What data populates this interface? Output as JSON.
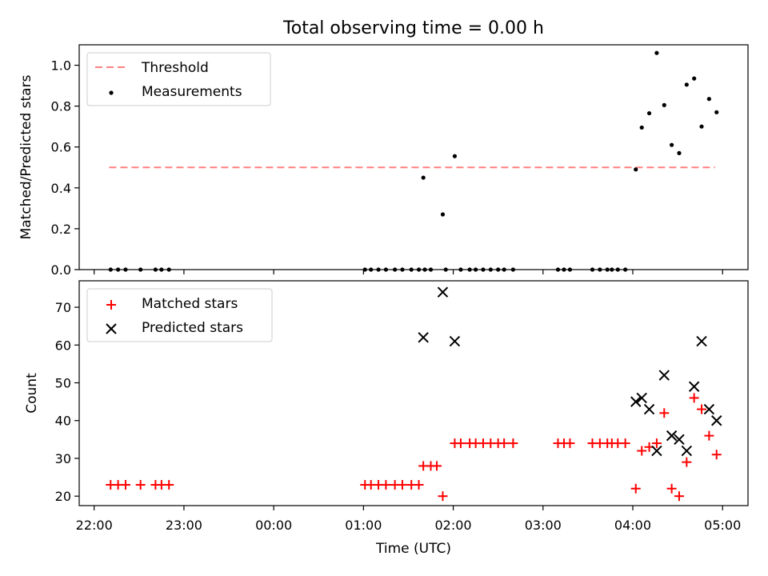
{
  "chart_data": [
    {
      "type": "scatter",
      "title": "Total observing time = 0.00 h",
      "ylabel": "Matched/Predicted stars",
      "xlabel": "",
      "xlim": [
        "21:50",
        "05:17"
      ],
      "ylim": [
        0,
        1.1
      ],
      "yticks": [
        "0.0",
        "0.2",
        "0.4",
        "0.6",
        "0.8",
        "1.0"
      ],
      "legend": {
        "position": "top-left"
      },
      "threshold": {
        "name": "Threshold",
        "value": 0.5,
        "x_range": [
          "22:10",
          "04:55"
        ],
        "color": "#ff8080"
      },
      "series": [
        {
          "name": "Measurements",
          "color": "#000000",
          "points": [
            [
              "22:11",
              0.0
            ],
            [
              "22:16",
              0.0
            ],
            [
              "22:21",
              0.0
            ],
            [
              "22:31",
              0.0
            ],
            [
              "22:41",
              0.0
            ],
            [
              "22:45",
              0.0
            ],
            [
              "22:50",
              0.0
            ],
            [
              "01:01",
              0.0
            ],
            [
              "01:05",
              0.0
            ],
            [
              "01:10",
              0.0
            ],
            [
              "01:15",
              0.0
            ],
            [
              "01:21",
              0.0
            ],
            [
              "01:26",
              0.0
            ],
            [
              "01:32",
              0.0
            ],
            [
              "01:37",
              0.0
            ],
            [
              "01:41",
              0.0
            ],
            [
              "01:45",
              0.0
            ],
            [
              "01:55",
              0.0
            ],
            [
              "02:05",
              0.0
            ],
            [
              "02:11",
              0.0
            ],
            [
              "02:15",
              0.0
            ],
            [
              "02:20",
              0.0
            ],
            [
              "02:25",
              0.0
            ],
            [
              "02:30",
              0.0
            ],
            [
              "02:34",
              0.0
            ],
            [
              "02:40",
              0.0
            ],
            [
              "03:10",
              0.0
            ],
            [
              "03:14",
              0.0
            ],
            [
              "03:18",
              0.0
            ],
            [
              "03:33",
              0.0
            ],
            [
              "03:38",
              0.0
            ],
            [
              "03:43",
              0.0
            ],
            [
              "03:46",
              0.0
            ],
            [
              "03:50",
              0.0
            ],
            [
              "03:55",
              0.0
            ],
            [
              "01:40",
              0.45
            ],
            [
              "01:53",
              0.27
            ],
            [
              "02:01",
              0.555
            ],
            [
              "04:02",
              0.49
            ],
            [
              "04:06",
              0.695
            ],
            [
              "04:11",
              0.765
            ],
            [
              "04:16",
              1.06
            ],
            [
              "04:21",
              0.805
            ],
            [
              "04:26",
              0.61
            ],
            [
              "04:31",
              0.57
            ],
            [
              "04:36",
              0.905
            ],
            [
              "04:41",
              0.935
            ],
            [
              "04:46",
              0.7
            ],
            [
              "04:51",
              0.835
            ],
            [
              "04:56",
              0.77
            ]
          ]
        }
      ]
    },
    {
      "type": "scatter",
      "title": "",
      "ylabel": "Count",
      "xlabel": "Time (UTC)",
      "xlim": [
        "21:50",
        "05:17"
      ],
      "ylim": [
        17.5,
        77
      ],
      "yticks": [
        "20",
        "30",
        "40",
        "50",
        "60",
        "70"
      ],
      "xticks": [
        "22:00",
        "23:00",
        "00:00",
        "01:00",
        "02:00",
        "03:00",
        "04:00",
        "05:00"
      ],
      "legend": {
        "position": "top-left"
      },
      "series": [
        {
          "name": "Matched stars",
          "marker": "+",
          "color": "#ff0000",
          "points": [
            [
              "22:11",
              23
            ],
            [
              "22:16",
              23
            ],
            [
              "22:21",
              23
            ],
            [
              "22:31",
              23
            ],
            [
              "22:41",
              23
            ],
            [
              "22:45",
              23
            ],
            [
              "22:50",
              23
            ],
            [
              "01:01",
              23
            ],
            [
              "01:05",
              23
            ],
            [
              "01:10",
              23
            ],
            [
              "01:15",
              23
            ],
            [
              "01:21",
              23
            ],
            [
              "01:26",
              23
            ],
            [
              "01:32",
              23
            ],
            [
              "01:37",
              23
            ],
            [
              "01:40",
              28
            ],
            [
              "01:45",
              28
            ],
            [
              "01:49",
              28
            ],
            [
              "01:53",
              20
            ],
            [
              "02:01",
              34
            ],
            [
              "02:05",
              34
            ],
            [
              "02:11",
              34
            ],
            [
              "02:15",
              34
            ],
            [
              "02:20",
              34
            ],
            [
              "02:25",
              34
            ],
            [
              "02:30",
              34
            ],
            [
              "02:34",
              34
            ],
            [
              "02:40",
              34
            ],
            [
              "03:10",
              34
            ],
            [
              "03:14",
              34
            ],
            [
              "03:18",
              34
            ],
            [
              "03:33",
              34
            ],
            [
              "03:38",
              34
            ],
            [
              "03:43",
              34
            ],
            [
              "03:46",
              34
            ],
            [
              "03:50",
              34
            ],
            [
              "03:55",
              34
            ],
            [
              "04:02",
              22
            ],
            [
              "04:06",
              32
            ],
            [
              "04:11",
              33
            ],
            [
              "04:16",
              34
            ],
            [
              "04:21",
              42
            ],
            [
              "04:26",
              22
            ],
            [
              "04:31",
              20
            ],
            [
              "04:36",
              29
            ],
            [
              "04:41",
              46
            ],
            [
              "04:46",
              43
            ],
            [
              "04:51",
              36
            ],
            [
              "04:56",
              31
            ]
          ]
        },
        {
          "name": "Predicted stars",
          "marker": "x",
          "color": "#000000",
          "points": [
            [
              "01:40",
              62
            ],
            [
              "01:53",
              74
            ],
            [
              "02:01",
              61
            ],
            [
              "04:02",
              45
            ],
            [
              "04:06",
              46
            ],
            [
              "04:11",
              43
            ],
            [
              "04:16",
              32
            ],
            [
              "04:21",
              52
            ],
            [
              "04:26",
              36
            ],
            [
              "04:31",
              35
            ],
            [
              "04:36",
              32
            ],
            [
              "04:41",
              49
            ],
            [
              "04:46",
              61
            ],
            [
              "04:51",
              43
            ],
            [
              "04:56",
              40
            ]
          ]
        }
      ]
    }
  ]
}
